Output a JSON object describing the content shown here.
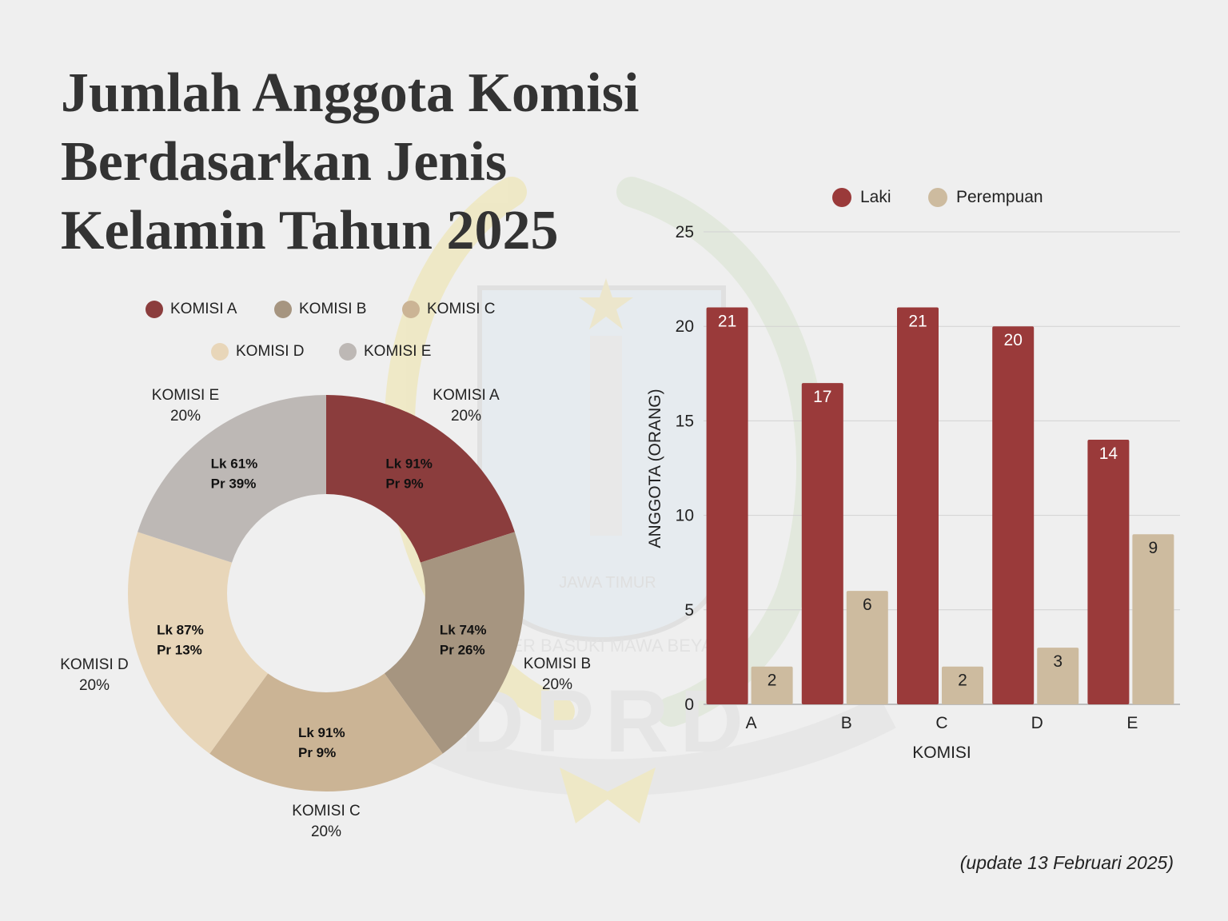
{
  "title_lines": [
    "Jumlah Anggota Komisi",
    "Berdasarkan Jenis",
    "Kelamin Tahun 2025"
  ],
  "footnote": "(update 13 Februari 2025)",
  "watermark": {
    "emblem_text": "DPRD",
    "ribbon_text": "JAWA TIMUR",
    "motto": "JER BASUKI MAWA BEYA"
  },
  "colors": {
    "komisi_a": "#8b3d3d",
    "komisi_b": "#a69580",
    "komisi_c": "#cbb495",
    "komisi_d": "#e8d6b9",
    "komisi_e": "#bdb8b5",
    "laki": "#9a3a3a",
    "perempuan": "#cdbb9f"
  },
  "chart_data": [
    {
      "type": "pie",
      "variant": "donut",
      "legend": [
        "KOMISI A",
        "KOMISI  B",
        "KOMISI C",
        "KOMISI  D",
        "KOMISI  E"
      ],
      "legend_placement": "top",
      "slices": [
        {
          "label": "KOMISI A",
          "percent_label": "20%",
          "value": 20,
          "inner_lines": [
            "Lk  91%",
            "Pr  9%"
          ]
        },
        {
          "label": "KOMISI  B",
          "percent_label": "20%",
          "value": 20,
          "inner_lines": [
            "Lk  74%",
            "Pr  26%"
          ]
        },
        {
          "label": "KOMISI C",
          "percent_label": "20%",
          "value": 20,
          "inner_lines": [
            "Lk  91%",
            "Pr  9%"
          ]
        },
        {
          "label": "KOMISI  D",
          "percent_label": "20%",
          "value": 20,
          "inner_lines": [
            "Lk  87%",
            "Pr  13%"
          ]
        },
        {
          "label": "KOMISI  E",
          "percent_label": "20%",
          "value": 20,
          "inner_lines": [
            "Lk  61%",
            "Pr  39%"
          ]
        }
      ]
    },
    {
      "type": "bar",
      "categories": [
        "A",
        "B",
        "C",
        "D",
        "E"
      ],
      "series": [
        {
          "name": "Laki",
          "values": [
            21,
            17,
            21,
            20,
            14
          ]
        },
        {
          "name": "Perempuan",
          "values": [
            2,
            6,
            2,
            3,
            9
          ]
        }
      ],
      "xlabel": "KOMISI",
      "ylabel": "ANGGOTA (ORANG)",
      "ylim": [
        0,
        25
      ],
      "yticks": [
        0,
        5,
        10,
        15,
        20,
        25
      ],
      "grid": true,
      "legend_placement": "top"
    }
  ]
}
